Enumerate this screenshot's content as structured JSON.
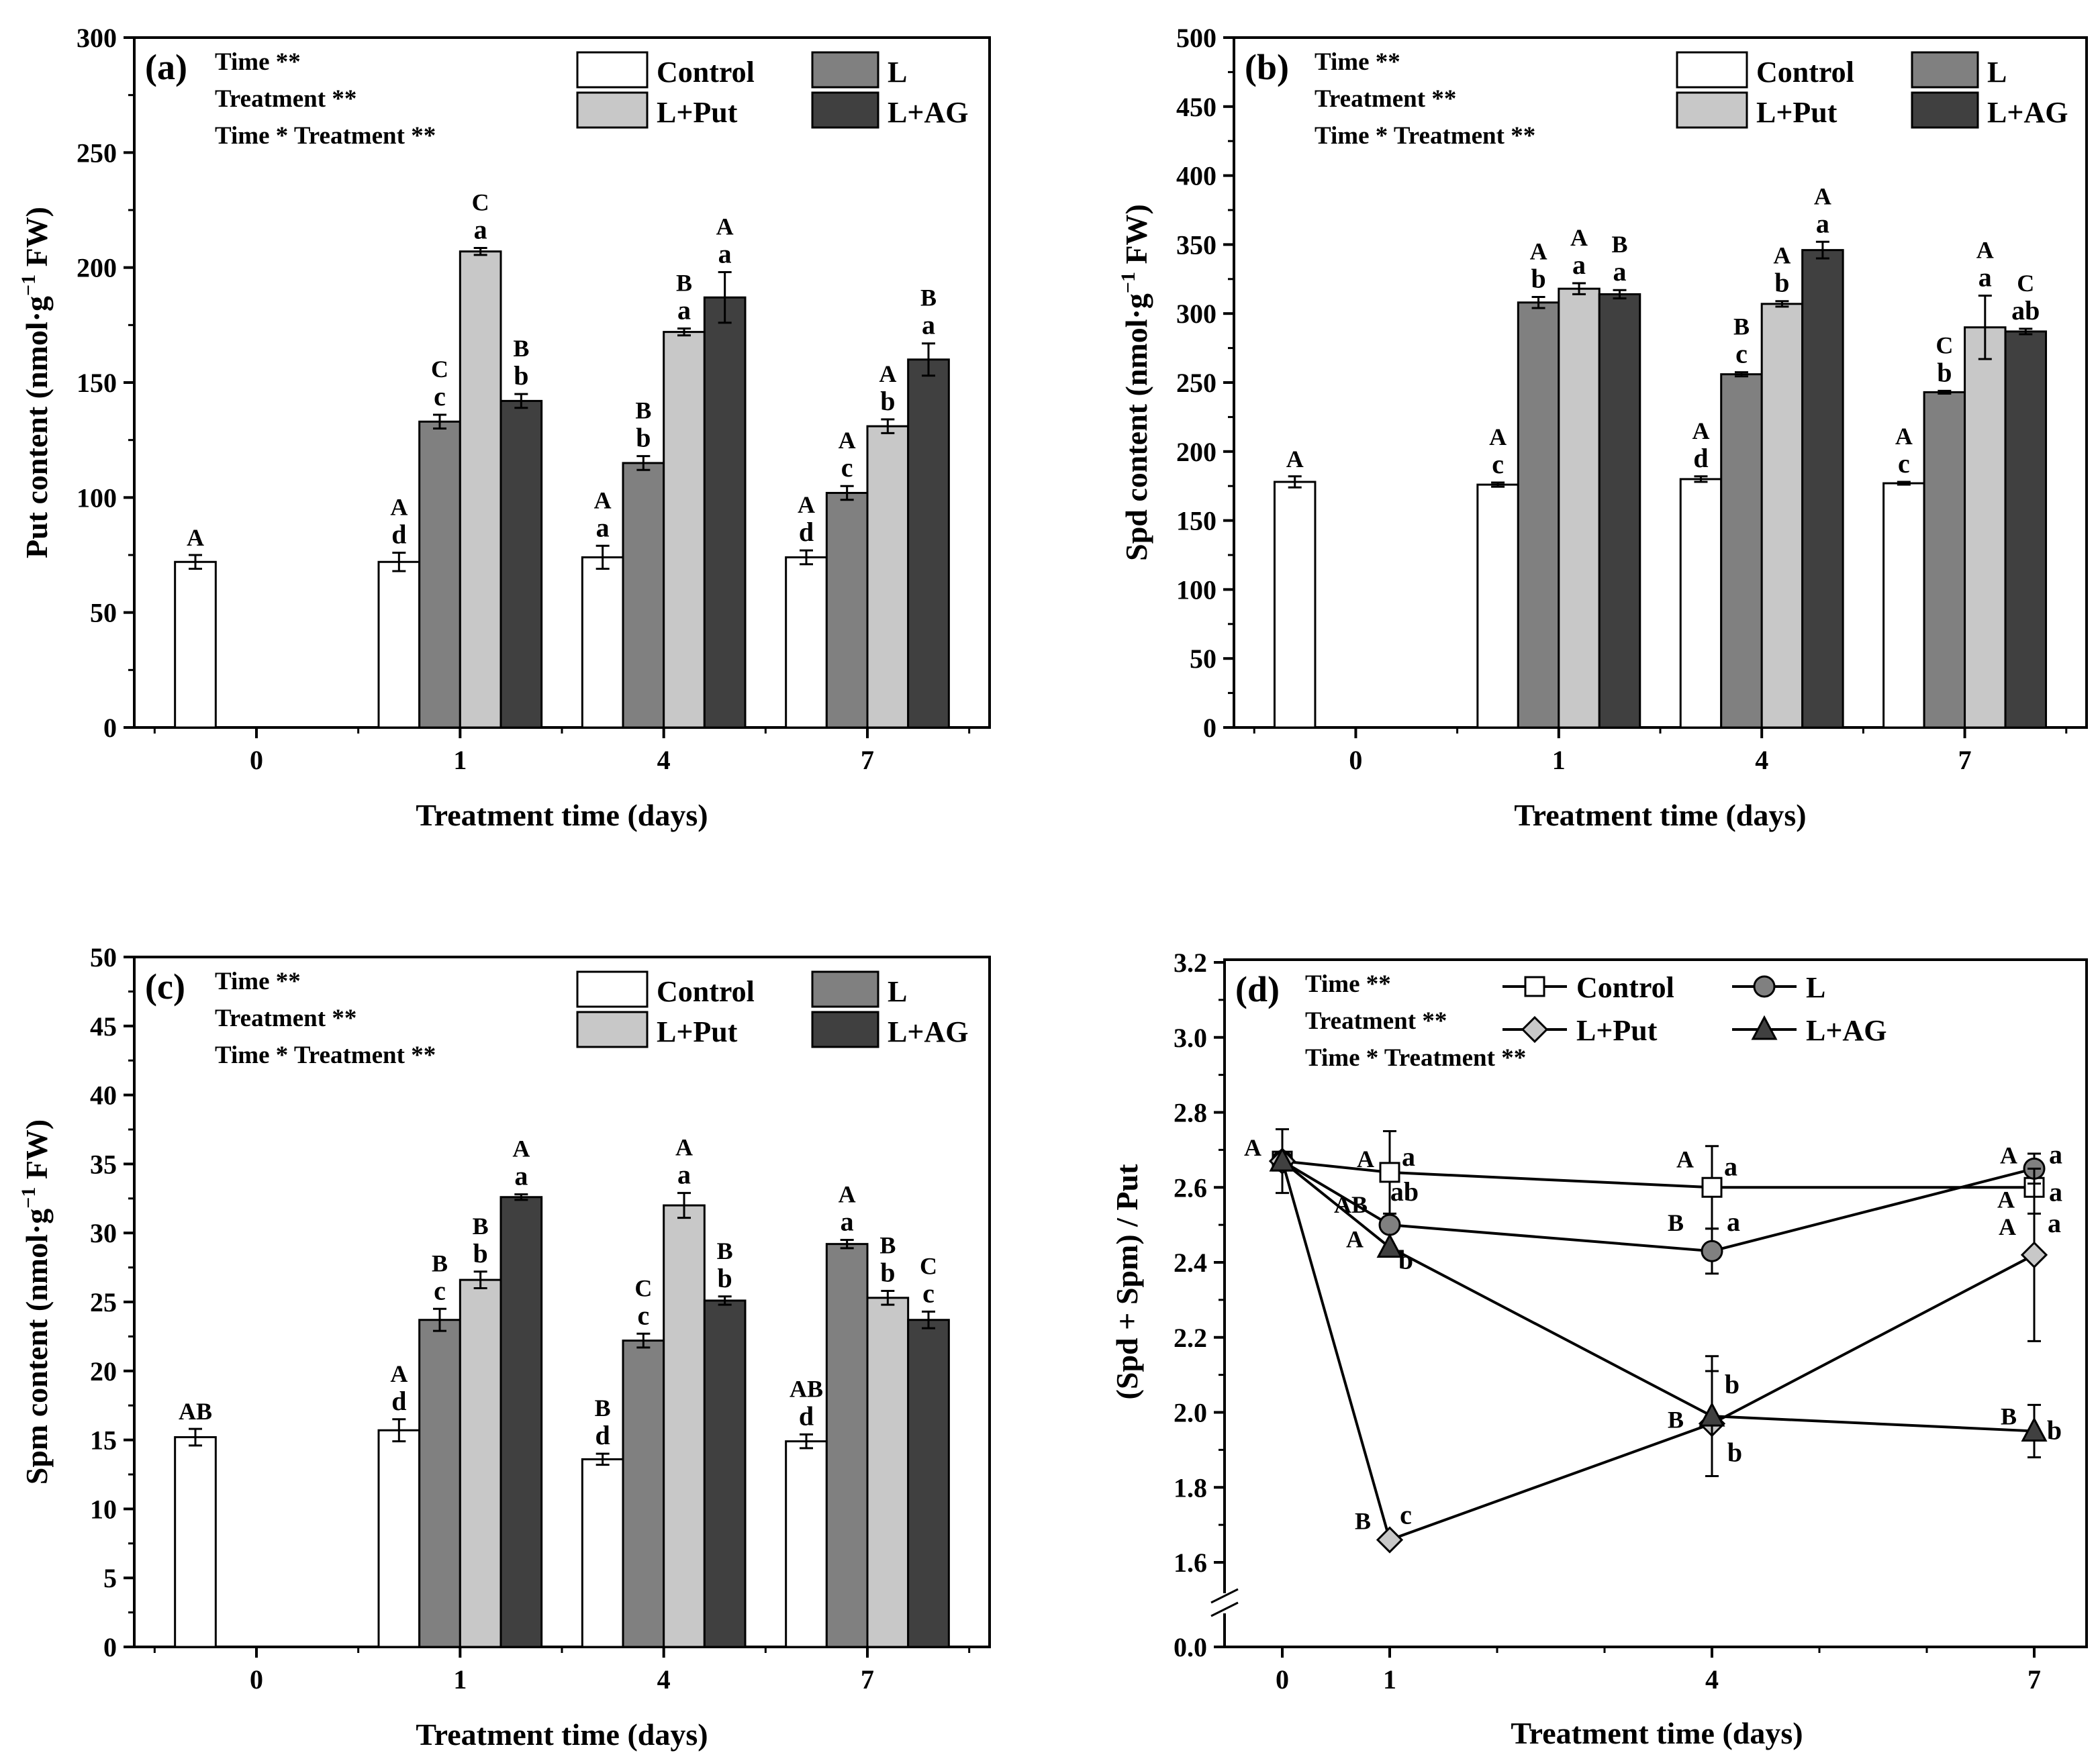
{
  "legend_labels": [
    "Control",
    "L",
    "L+Put",
    "L+AG"
  ],
  "series_colors": [
    "#ffffff",
    "#808080",
    "#c8c8c8",
    "#404040"
  ],
  "stats_lines": [
    "Time **",
    "Treatment  **",
    "Time * Treatment **"
  ],
  "chart_data": [
    {
      "panel": "(a)",
      "type": "bar",
      "ylabel": "Put content (nmol·g⁻¹ FW)",
      "xlabel": "Treatment time (days)",
      "categories": [
        "0",
        "1",
        "4",
        "7"
      ],
      "ylim": [
        0,
        300
      ],
      "yticks": [
        0,
        50,
        100,
        150,
        200,
        250,
        300
      ],
      "series": [
        {
          "name": "Control",
          "values": [
            72,
            72,
            74,
            74
          ],
          "upper": [
            "A",
            "A",
            "A",
            "A"
          ],
          "lower": [
            "",
            "d",
            "a",
            "d"
          ]
        },
        {
          "name": "L",
          "values": [
            null,
            133,
            115,
            102
          ],
          "upper": [
            "",
            "C",
            "B",
            "A"
          ],
          "lower": [
            "",
            "c",
            "b",
            "c"
          ]
        },
        {
          "name": "L+Put",
          "values": [
            null,
            207,
            172,
            131
          ],
          "upper": [
            "",
            "C",
            "B",
            "A"
          ],
          "lower": [
            "",
            "a",
            "a",
            "b"
          ]
        },
        {
          "name": "L+AG",
          "values": [
            null,
            142,
            187,
            160
          ],
          "upper": [
            "",
            "B",
            "A",
            "B"
          ],
          "lower": [
            "",
            "b",
            "a",
            "a"
          ]
        }
      ]
    },
    {
      "panel": "(b)",
      "type": "bar",
      "ylabel": "Spd content (nmol·g⁻¹ FW)",
      "xlabel": "Treatment time (days)",
      "categories": [
        "0",
        "1",
        "4",
        "7"
      ],
      "ylim": [
        0,
        500
      ],
      "yticks": [
        0,
        50,
        100,
        150,
        200,
        250,
        300,
        350,
        400,
        450,
        500
      ],
      "series": [
        {
          "name": "Control",
          "values": [
            178,
            176,
            180,
            177
          ],
          "upper": [
            "A",
            "A",
            "A",
            "A"
          ],
          "lower": [
            "",
            "c",
            "d",
            "c"
          ]
        },
        {
          "name": "L",
          "values": [
            null,
            308,
            256,
            243
          ],
          "upper": [
            "",
            "A",
            "B",
            "C"
          ],
          "lower": [
            "",
            "b",
            "c",
            "b"
          ]
        },
        {
          "name": "L+Put",
          "values": [
            null,
            318,
            307,
            290
          ],
          "upper": [
            "",
            "A",
            "A",
            "A"
          ],
          "lower": [
            "",
            "a",
            "b",
            "a"
          ]
        },
        {
          "name": "L+AG",
          "values": [
            null,
            314,
            346,
            287
          ],
          "upper": [
            "",
            "B",
            "A",
            "C"
          ],
          "lower": [
            "",
            "a",
            "a",
            "ab"
          ]
        }
      ]
    },
    {
      "panel": "(c)",
      "type": "bar",
      "ylabel": "Spm content (nmol·g⁻¹ FW)",
      "xlabel": "Treatment time (days)",
      "categories": [
        "0",
        "1",
        "4",
        "7"
      ],
      "ylim": [
        0,
        50
      ],
      "yticks": [
        0,
        5,
        10,
        15,
        20,
        25,
        30,
        35,
        40,
        45,
        50
      ],
      "series": [
        {
          "name": "Control",
          "values": [
            15.2,
            15.7,
            13.6,
            14.9
          ],
          "upper": [
            "AB",
            "A",
            "B",
            "AB"
          ],
          "lower": [
            "",
            "d",
            "d",
            "d"
          ]
        },
        {
          "name": "L",
          "values": [
            null,
            23.7,
            22.2,
            29.2
          ],
          "upper": [
            "",
            "B",
            "C",
            "A"
          ],
          "lower": [
            "",
            "c",
            "c",
            "a"
          ]
        },
        {
          "name": "L+Put",
          "values": [
            null,
            26.6,
            32.0,
            25.3
          ],
          "upper": [
            "",
            "B",
            "A",
            "B"
          ],
          "lower": [
            "",
            "b",
            "a",
            "b"
          ]
        },
        {
          "name": "L+AG",
          "values": [
            null,
            32.6,
            25.1,
            23.7
          ],
          "upper": [
            "",
            "A",
            "B",
            "C"
          ],
          "lower": [
            "",
            "a",
            "b",
            "c"
          ]
        }
      ]
    },
    {
      "panel": "(d)",
      "type": "line",
      "ylabel": "(Spd + Spm) / Put",
      "xlabel": "Treatment time (days)",
      "x": [
        0,
        1,
        4,
        7
      ],
      "ylim": [
        1.5,
        3.2
      ],
      "yticks": [
        "0.0",
        "1.6",
        "1.8",
        "2.0",
        "2.2",
        "2.4",
        "2.6",
        "2.8",
        "3.0",
        "3.2"
      ],
      "axis_break": true,
      "series": [
        {
          "name": "Control",
          "marker": "square",
          "values": [
            2.67,
            2.64,
            2.6,
            2.6
          ],
          "upper": [
            "A",
            "A",
            "A",
            "A"
          ],
          "lower": [
            "",
            "a",
            "a",
            "a"
          ]
        },
        {
          "name": "L",
          "marker": "circle",
          "values": [
            2.67,
            2.5,
            2.43,
            2.65
          ],
          "upper": [
            "",
            "AB",
            "B",
            "A"
          ],
          "lower": [
            "",
            "ab",
            "a",
            "a"
          ]
        },
        {
          "name": "L+Put",
          "marker": "diamond",
          "values": [
            2.67,
            1.66,
            1.97,
            2.42
          ],
          "upper": [
            "",
            "B",
            "B",
            "A"
          ],
          "lower": [
            "",
            "c",
            "b",
            "a"
          ]
        },
        {
          "name": "L+AG",
          "marker": "triangle",
          "values": [
            2.67,
            2.44,
            1.99,
            1.95
          ],
          "upper": [
            "",
            "A",
            "",
            "B"
          ],
          "lower": [
            "",
            "b",
            "b",
            "b"
          ]
        }
      ]
    }
  ]
}
